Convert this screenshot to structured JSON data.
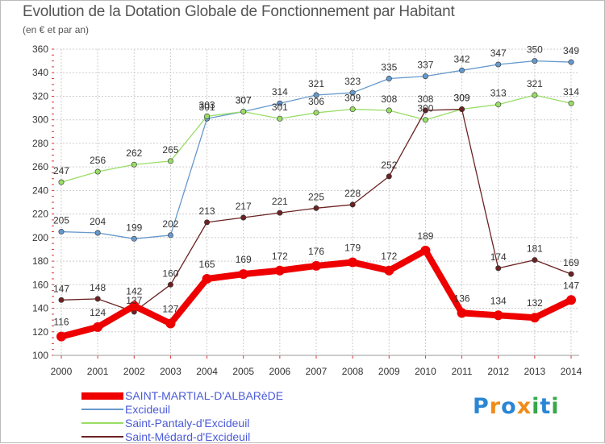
{
  "chart_data": {
    "type": "line",
    "title": "Evolution de la Dotation Globale de Fonctionnement par Habitant",
    "subtitle": "(en € et par an)",
    "x": [
      "2000",
      "2001",
      "2002",
      "2003",
      "2004",
      "2005",
      "2006",
      "2007",
      "2008",
      "2009",
      "2010",
      "2011",
      "2012",
      "2013",
      "2014"
    ],
    "ylim": [
      100,
      360
    ],
    "yticks": [
      100,
      120,
      140,
      160,
      180,
      200,
      220,
      240,
      260,
      280,
      300,
      320,
      340,
      360
    ],
    "grid": true,
    "legend_position": "bottom-left",
    "series": [
      {
        "name": "SAINT-MARTIAL-D'ALBARèDE",
        "color": "#ee0000",
        "values": [
          116,
          124,
          142,
          127,
          165,
          169,
          172,
          176,
          179,
          172,
          189,
          136,
          134,
          132,
          147
        ]
      },
      {
        "name": "Excideuil",
        "color": "#6699cc",
        "values": [
          205,
          204,
          199,
          202,
          301,
          307,
          314,
          321,
          323,
          335,
          337,
          342,
          347,
          350,
          349
        ]
      },
      {
        "name": "Saint-Pantaly-d'Excideuil",
        "color": "#99dd66",
        "values": [
          247,
          256,
          262,
          265,
          303,
          307,
          301,
          306,
          309,
          308,
          300,
          309,
          313,
          321,
          314
        ]
      },
      {
        "name": "Saint-Médard-d'Excideuil",
        "color": "#6b2222",
        "values": [
          147,
          148,
          137,
          160,
          213,
          217,
          221,
          225,
          228,
          252,
          308,
          309,
          174,
          181,
          169
        ]
      }
    ]
  },
  "logo": {
    "text": "Proxiti",
    "letters": [
      "P",
      "r",
      "o",
      "x",
      "i",
      "t",
      "i"
    ],
    "colors": [
      "#2a86d4",
      "#f08c1a",
      "#2a86d4",
      "#f08c1a",
      "#36a84a",
      "#2a86d4",
      "#36a84a"
    ]
  }
}
